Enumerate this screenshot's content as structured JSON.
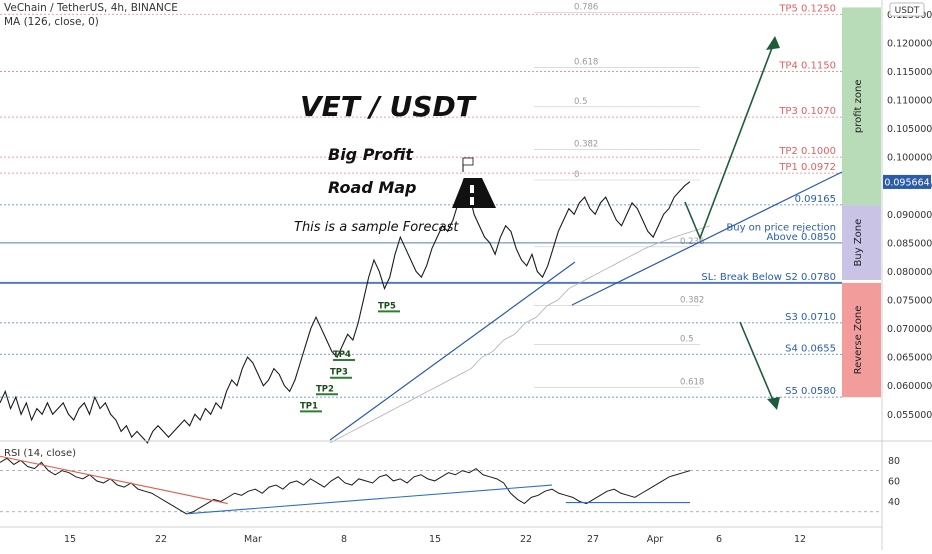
{
  "header": {
    "symbol_line": "VeChain / TetherUS, 4h, BINANCE",
    "ma_line": "MA (126, close, 0)",
    "currency_badge": "USDT"
  },
  "titles": {
    "main": "VET / USDT",
    "sub1": "Big Profit",
    "sub2": "Road Map",
    "note": "This is a sample Forecast"
  },
  "chart_data": {
    "type": "line",
    "title": "VET / USDT",
    "x_tick_labels": [
      "15",
      "22",
      "Mar",
      "8",
      "15",
      "22",
      "27",
      "Apr",
      "6",
      "12"
    ],
    "price_axis": {
      "ylim": [
        0.0505,
        0.1275
      ],
      "tick_labels": [
        "0.125000",
        "0.120000",
        "0.115000",
        "0.110000",
        "0.105000",
        "0.100000",
        "0.095000",
        "0.090000",
        "0.085000",
        "0.080000",
        "0.075000",
        "0.070000",
        "0.065000",
        "0.060000",
        "0.055000"
      ],
      "last_price_label": "0.095664",
      "last_price": 0.095664
    },
    "fib_levels": [
      {
        "label": "0.786",
        "value": 0.1253
      },
      {
        "label": "0.618",
        "value": 0.1157
      },
      {
        "label": "0.5",
        "value": 0.1088
      },
      {
        "label": "0.382",
        "value": 0.1013
      },
      {
        "label": "0",
        "value": 0.096
      },
      {
        "label": "0.236",
        "value": 0.0843
      },
      {
        "label": "0.382",
        "value": 0.074
      },
      {
        "label": "0.5",
        "value": 0.0672
      },
      {
        "label": "0.618",
        "value": 0.0597
      }
    ],
    "levels": [
      {
        "label": "TP5 0.1250",
        "value": 0.125,
        "kind": "tp"
      },
      {
        "label": "TP4 0.1150",
        "value": 0.115,
        "kind": "tp"
      },
      {
        "label": "TP3 0.1070",
        "value": 0.107,
        "kind": "tp"
      },
      {
        "label": "TP2 0.1000",
        "value": 0.1,
        "kind": "tp"
      },
      {
        "label": "TP1 0.0972",
        "value": 0.0972,
        "kind": "tp"
      },
      {
        "label": "0.09165",
        "value": 0.09165,
        "kind": "support"
      },
      {
        "label": "Buy on price rejection",
        "value": 0.0866,
        "kind": "note"
      },
      {
        "label": "Above 0.0850",
        "value": 0.085,
        "kind": "buy"
      },
      {
        "label": "SL: Break Below S2 0.0780",
        "value": 0.078,
        "kind": "sl"
      },
      {
        "label": "S3 0.0710",
        "value": 0.071,
        "kind": "support"
      },
      {
        "label": "S4 0.0655",
        "value": 0.0655,
        "kind": "support"
      },
      {
        "label": "S5 0.0580",
        "value": 0.058,
        "kind": "support"
      }
    ],
    "zones": [
      {
        "label": "profit zone",
        "from": 0.0916,
        "to": 0.1262,
        "color": "#b7dcb7"
      },
      {
        "label": "Buy Zone",
        "from": 0.0785,
        "to": 0.0916,
        "color": "#c9c3e6"
      },
      {
        "label": "Reverse Zone",
        "from": 0.058,
        "to": 0.078,
        "color": "#f29c9c"
      }
    ],
    "tp_markers": [
      {
        "label": "TP1",
        "value": 0.0555
      },
      {
        "label": "TP2",
        "value": 0.0585
      },
      {
        "label": "TP3",
        "value": 0.0614
      },
      {
        "label": "TP4",
        "value": 0.0645
      },
      {
        "label": "TP5",
        "value": 0.073
      }
    ],
    "price_path": [
      0.057,
      0.059,
      0.056,
      0.058,
      0.055,
      0.057,
      0.054,
      0.056,
      0.055,
      0.057,
      0.055,
      0.056,
      0.057,
      0.055,
      0.054,
      0.056,
      0.057,
      0.055,
      0.058,
      0.056,
      0.057,
      0.055,
      0.054,
      0.052,
      0.053,
      0.051,
      0.052,
      0.051,
      0.05,
      0.052,
      0.053,
      0.052,
      0.051,
      0.052,
      0.053,
      0.054,
      0.053,
      0.055,
      0.054,
      0.056,
      0.055,
      0.057,
      0.056,
      0.059,
      0.061,
      0.06,
      0.063,
      0.065,
      0.064,
      0.062,
      0.06,
      0.061,
      0.063,
      0.062,
      0.06,
      0.059,
      0.061,
      0.064,
      0.067,
      0.07,
      0.072,
      0.07,
      0.068,
      0.066,
      0.065,
      0.067,
      0.069,
      0.068,
      0.071,
      0.075,
      0.079,
      0.082,
      0.08,
      0.077,
      0.079,
      0.083,
      0.086,
      0.084,
      0.082,
      0.08,
      0.079,
      0.081,
      0.084,
      0.086,
      0.088,
      0.087,
      0.089,
      0.092,
      0.096,
      0.094,
      0.09,
      0.088,
      0.086,
      0.085,
      0.083,
      0.086,
      0.088,
      0.087,
      0.084,
      0.082,
      0.081,
      0.083,
      0.08,
      0.079,
      0.081,
      0.084,
      0.087,
      0.089,
      0.091,
      0.09,
      0.092,
      0.093,
      0.091,
      0.09,
      0.092,
      0.093,
      0.091,
      0.089,
      0.088,
      0.09,
      0.092,
      0.091,
      0.089,
      0.087,
      0.086,
      0.088,
      0.09,
      0.091,
      0.093,
      0.094,
      0.095,
      0.0957
    ],
    "ma_path": [
      0.05,
      0.051,
      0.052,
      0.053,
      0.054,
      0.055,
      0.056,
      0.057,
      0.058,
      0.059,
      0.06,
      0.061,
      0.062,
      0.063,
      0.065,
      0.066,
      0.068,
      0.069,
      0.071,
      0.072,
      0.074,
      0.075,
      0.077,
      0.078,
      0.079,
      0.08,
      0.081,
      0.082,
      0.083,
      0.084,
      0.0848,
      0.0855,
      0.0862,
      0.0868,
      0.0874,
      0.088
    ],
    "rsi": {
      "label": "RSI (14, close)",
      "ylim": [
        22,
        92
      ],
      "tick_labels": [
        "80",
        "60",
        "40"
      ],
      "levels": [
        70,
        30
      ],
      "values": [
        78,
        82,
        76,
        80,
        74,
        72,
        78,
        70,
        66,
        70,
        68,
        64,
        62,
        66,
        60,
        58,
        62,
        56,
        54,
        58,
        52,
        50,
        48,
        44,
        40,
        36,
        32,
        28,
        30,
        34,
        38,
        42,
        40,
        44,
        48,
        46,
        50,
        52,
        48,
        54,
        56,
        52,
        58,
        60,
        56,
        62,
        58,
        54,
        60,
        64,
        58,
        56,
        62,
        60,
        58,
        64,
        66,
        60,
        62,
        58,
        64,
        66,
        62,
        60,
        64,
        68,
        66,
        70,
        68,
        72,
        66,
        64,
        62,
        58,
        48,
        42,
        38,
        44,
        46,
        50,
        52,
        48,
        46,
        44,
        40,
        38,
        42,
        46,
        50,
        52,
        48,
        46,
        44,
        48,
        52,
        56,
        60,
        64,
        66,
        68,
        70
      ],
      "trendlines": [
        {
          "from": [
            0,
            84
          ],
          "to": [
            33,
            38
          ],
          "color": "#e05a4a"
        },
        {
          "from": [
            27,
            28
          ],
          "to": [
            80,
            56
          ],
          "color": "#2a6fc2"
        },
        {
          "from": [
            82,
            39
          ],
          "to": [
            100,
            39
          ],
          "color": "#2a6fc2"
        }
      ]
    }
  }
}
